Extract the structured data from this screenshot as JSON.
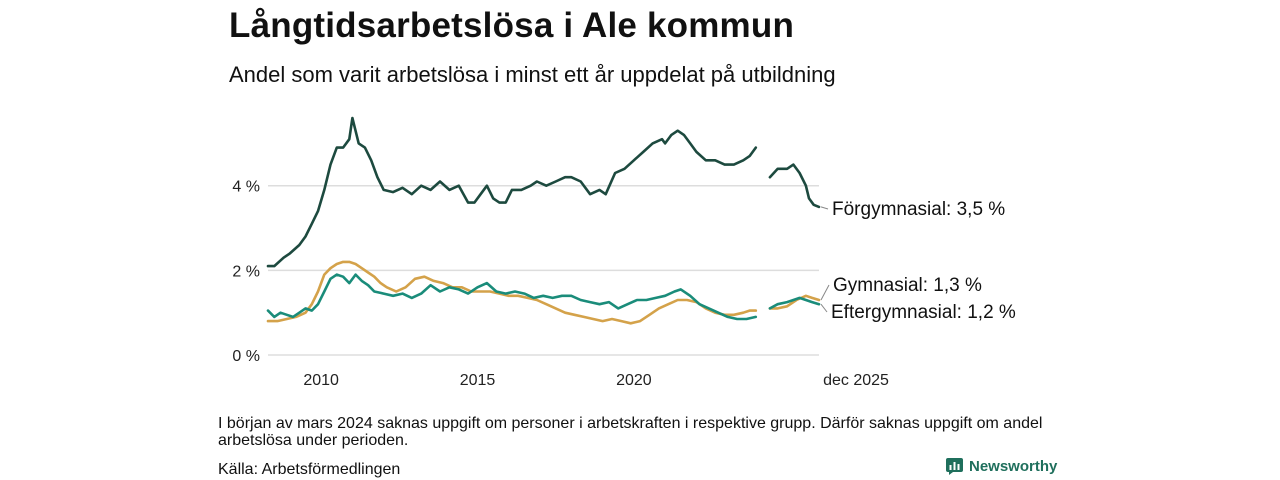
{
  "title": "Långtidsarbetslösa i Ale kommun",
  "subtitle": "Andel som varit arbetslösa i minst ett år uppdelat på utbildning",
  "footnote": "I början av mars 2024 saknas uppgift om personer i arbetskraften i respektive grupp. Därför saknas uppgift om andel arbetslösa under perioden.",
  "source": "Källa: Arbetsförmedlingen",
  "brand": "Newsworthy",
  "colors": {
    "forgymnasial": "#1d4a3f",
    "gymnasial": "#d4a24a",
    "eftergymnasial": "#1a8c7a",
    "grid": "#dddddd",
    "brand": "#1f6f5c"
  },
  "chart_data": {
    "type": "line",
    "title": "Långtidsarbetslösa i Ale kommun",
    "subtitle": "Andel som varit arbetslösa i minst ett år uppdelat på utbildning",
    "xlabel": "",
    "ylabel": "",
    "xlim": [
      2008.3,
      2025.92
    ],
    "ylim": [
      0,
      5.6
    ],
    "y_ticks": [
      {
        "value": 0,
        "label": "0 %"
      },
      {
        "value": 2,
        "label": "2 %"
      },
      {
        "value": 4,
        "label": "4 %"
      }
    ],
    "x_ticks": [
      {
        "value": 2010,
        "label": "2010"
      },
      {
        "value": 2015,
        "label": "2015"
      },
      {
        "value": 2020,
        "label": "2020"
      },
      {
        "value": 2025.92,
        "label": "dec 2025"
      }
    ],
    "gap": [
      2023.95,
      2024.35
    ],
    "series": [
      {
        "name": "Förgymnasial",
        "label": "Förgymnasial: 3,5 %",
        "color_key": "forgymnasial",
        "points": [
          [
            2008.3,
            2.1
          ],
          [
            2008.5,
            2.1
          ],
          [
            2008.8,
            2.3
          ],
          [
            2009.0,
            2.4
          ],
          [
            2009.3,
            2.6
          ],
          [
            2009.5,
            2.8
          ],
          [
            2009.7,
            3.1
          ],
          [
            2009.9,
            3.4
          ],
          [
            2010.1,
            3.9
          ],
          [
            2010.3,
            4.5
          ],
          [
            2010.5,
            4.9
          ],
          [
            2010.7,
            4.9
          ],
          [
            2010.9,
            5.1
          ],
          [
            2011.0,
            5.6
          ],
          [
            2011.2,
            5.0
          ],
          [
            2011.4,
            4.9
          ],
          [
            2011.6,
            4.6
          ],
          [
            2011.8,
            4.2
          ],
          [
            2012.0,
            3.9
          ],
          [
            2012.3,
            3.85
          ],
          [
            2012.6,
            3.95
          ],
          [
            2012.9,
            3.8
          ],
          [
            2013.2,
            4.0
          ],
          [
            2013.5,
            3.9
          ],
          [
            2013.8,
            4.1
          ],
          [
            2014.1,
            3.9
          ],
          [
            2014.4,
            4.0
          ],
          [
            2014.7,
            3.6
          ],
          [
            2014.9,
            3.6
          ],
          [
            2015.1,
            3.8
          ],
          [
            2015.3,
            4.0
          ],
          [
            2015.5,
            3.7
          ],
          [
            2015.7,
            3.6
          ],
          [
            2015.9,
            3.6
          ],
          [
            2016.1,
            3.9
          ],
          [
            2016.4,
            3.9
          ],
          [
            2016.7,
            4.0
          ],
          [
            2016.9,
            4.1
          ],
          [
            2017.2,
            4.0
          ],
          [
            2017.5,
            4.1
          ],
          [
            2017.8,
            4.2
          ],
          [
            2018.0,
            4.2
          ],
          [
            2018.3,
            4.1
          ],
          [
            2018.6,
            3.8
          ],
          [
            2018.9,
            3.9
          ],
          [
            2019.1,
            3.8
          ],
          [
            2019.4,
            4.3
          ],
          [
            2019.7,
            4.4
          ],
          [
            2020.0,
            4.6
          ],
          [
            2020.3,
            4.8
          ],
          [
            2020.6,
            5.0
          ],
          [
            2020.9,
            5.1
          ],
          [
            2021.0,
            5.0
          ],
          [
            2021.2,
            5.2
          ],
          [
            2021.4,
            5.3
          ],
          [
            2021.6,
            5.2
          ],
          [
            2021.8,
            5.0
          ],
          [
            2022.0,
            4.8
          ],
          [
            2022.3,
            4.6
          ],
          [
            2022.6,
            4.6
          ],
          [
            2022.9,
            4.5
          ],
          [
            2023.2,
            4.5
          ],
          [
            2023.5,
            4.6
          ],
          [
            2023.7,
            4.7
          ],
          [
            2023.9,
            4.9
          ],
          null,
          [
            2024.35,
            4.2
          ],
          [
            2024.6,
            4.4
          ],
          [
            2024.9,
            4.4
          ],
          [
            2025.1,
            4.5
          ],
          [
            2025.3,
            4.3
          ],
          [
            2025.5,
            4.0
          ],
          [
            2025.6,
            3.7
          ],
          [
            2025.75,
            3.55
          ],
          [
            2025.92,
            3.5
          ]
        ]
      },
      {
        "name": "Gymnasial",
        "label": "Gymnasial: 1,3 %",
        "color_key": "gymnasial",
        "points": [
          [
            2008.3,
            0.8
          ],
          [
            2008.6,
            0.8
          ],
          [
            2008.9,
            0.85
          ],
          [
            2009.2,
            0.9
          ],
          [
            2009.5,
            1.0
          ],
          [
            2009.7,
            1.2
          ],
          [
            2009.9,
            1.5
          ],
          [
            2010.1,
            1.9
          ],
          [
            2010.3,
            2.05
          ],
          [
            2010.5,
            2.15
          ],
          [
            2010.7,
            2.2
          ],
          [
            2010.9,
            2.2
          ],
          [
            2011.1,
            2.15
          ],
          [
            2011.3,
            2.05
          ],
          [
            2011.5,
            1.95
          ],
          [
            2011.7,
            1.85
          ],
          [
            2011.9,
            1.7
          ],
          [
            2012.1,
            1.6
          ],
          [
            2012.4,
            1.5
          ],
          [
            2012.7,
            1.6
          ],
          [
            2013.0,
            1.8
          ],
          [
            2013.3,
            1.85
          ],
          [
            2013.6,
            1.75
          ],
          [
            2013.9,
            1.7
          ],
          [
            2014.2,
            1.6
          ],
          [
            2014.5,
            1.6
          ],
          [
            2014.8,
            1.5
          ],
          [
            2015.1,
            1.5
          ],
          [
            2015.4,
            1.5
          ],
          [
            2015.7,
            1.45
          ],
          [
            2016.0,
            1.4
          ],
          [
            2016.3,
            1.4
          ],
          [
            2016.6,
            1.35
          ],
          [
            2016.9,
            1.3
          ],
          [
            2017.2,
            1.2
          ],
          [
            2017.5,
            1.1
          ],
          [
            2017.8,
            1.0
          ],
          [
            2018.1,
            0.95
          ],
          [
            2018.4,
            0.9
          ],
          [
            2018.7,
            0.85
          ],
          [
            2019.0,
            0.8
          ],
          [
            2019.3,
            0.85
          ],
          [
            2019.6,
            0.8
          ],
          [
            2019.9,
            0.75
          ],
          [
            2020.2,
            0.8
          ],
          [
            2020.5,
            0.95
          ],
          [
            2020.8,
            1.1
          ],
          [
            2021.1,
            1.2
          ],
          [
            2021.4,
            1.3
          ],
          [
            2021.7,
            1.3
          ],
          [
            2022.0,
            1.25
          ],
          [
            2022.3,
            1.1
          ],
          [
            2022.6,
            1.0
          ],
          [
            2022.9,
            0.95
          ],
          [
            2023.2,
            0.95
          ],
          [
            2023.5,
            1.0
          ],
          [
            2023.7,
            1.05
          ],
          [
            2023.9,
            1.05
          ],
          null,
          [
            2024.35,
            1.1
          ],
          [
            2024.6,
            1.1
          ],
          [
            2024.9,
            1.15
          ],
          [
            2025.2,
            1.3
          ],
          [
            2025.5,
            1.4
          ],
          [
            2025.7,
            1.35
          ],
          [
            2025.92,
            1.3
          ]
        ]
      },
      {
        "name": "Eftergymnasial",
        "label": "Eftergymnasial: 1,2 %",
        "color_key": "eftergymnasial",
        "points": [
          [
            2008.3,
            1.05
          ],
          [
            2008.5,
            0.9
          ],
          [
            2008.7,
            1.0
          ],
          [
            2008.9,
            0.95
          ],
          [
            2009.1,
            0.9
          ],
          [
            2009.3,
            1.0
          ],
          [
            2009.5,
            1.1
          ],
          [
            2009.7,
            1.05
          ],
          [
            2009.9,
            1.2
          ],
          [
            2010.1,
            1.5
          ],
          [
            2010.3,
            1.8
          ],
          [
            2010.5,
            1.9
          ],
          [
            2010.7,
            1.85
          ],
          [
            2010.9,
            1.7
          ],
          [
            2011.1,
            1.9
          ],
          [
            2011.3,
            1.75
          ],
          [
            2011.5,
            1.65
          ],
          [
            2011.7,
            1.5
          ],
          [
            2012.0,
            1.45
          ],
          [
            2012.3,
            1.4
          ],
          [
            2012.6,
            1.45
          ],
          [
            2012.9,
            1.35
          ],
          [
            2013.2,
            1.45
          ],
          [
            2013.5,
            1.65
          ],
          [
            2013.8,
            1.5
          ],
          [
            2014.1,
            1.6
          ],
          [
            2014.4,
            1.55
          ],
          [
            2014.7,
            1.45
          ],
          [
            2015.0,
            1.6
          ],
          [
            2015.3,
            1.7
          ],
          [
            2015.6,
            1.5
          ],
          [
            2015.9,
            1.45
          ],
          [
            2016.2,
            1.5
          ],
          [
            2016.5,
            1.45
          ],
          [
            2016.8,
            1.35
          ],
          [
            2017.1,
            1.4
          ],
          [
            2017.4,
            1.35
          ],
          [
            2017.7,
            1.4
          ],
          [
            2018.0,
            1.4
          ],
          [
            2018.3,
            1.3
          ],
          [
            2018.6,
            1.25
          ],
          [
            2018.9,
            1.2
          ],
          [
            2019.2,
            1.25
          ],
          [
            2019.5,
            1.1
          ],
          [
            2019.8,
            1.2
          ],
          [
            2020.1,
            1.3
          ],
          [
            2020.4,
            1.3
          ],
          [
            2020.7,
            1.35
          ],
          [
            2021.0,
            1.4
          ],
          [
            2021.3,
            1.5
          ],
          [
            2021.5,
            1.55
          ],
          [
            2021.8,
            1.4
          ],
          [
            2022.1,
            1.2
          ],
          [
            2022.4,
            1.1
          ],
          [
            2022.7,
            1.0
          ],
          [
            2023.0,
            0.9
          ],
          [
            2023.3,
            0.85
          ],
          [
            2023.6,
            0.85
          ],
          [
            2023.9,
            0.9
          ],
          null,
          [
            2024.35,
            1.1
          ],
          [
            2024.6,
            1.2
          ],
          [
            2024.9,
            1.25
          ],
          [
            2025.1,
            1.3
          ],
          [
            2025.3,
            1.35
          ],
          [
            2025.5,
            1.3
          ],
          [
            2025.7,
            1.25
          ],
          [
            2025.92,
            1.2
          ]
        ]
      }
    ]
  }
}
